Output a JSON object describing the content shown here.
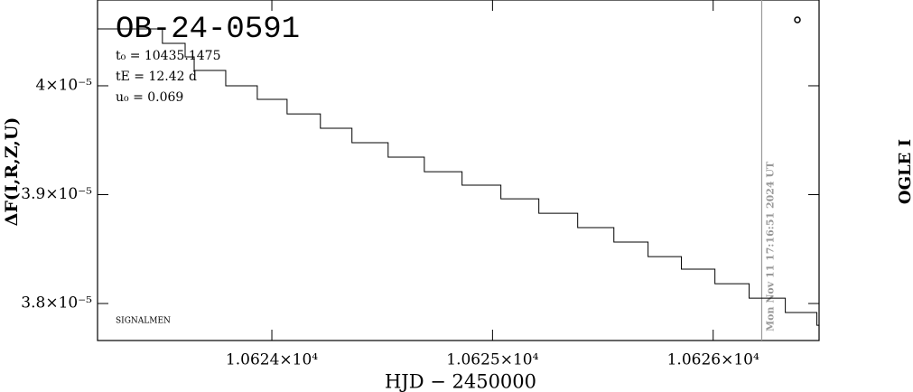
{
  "chart_data": {
    "type": "line",
    "title": "OB-24-0591",
    "parameters": [
      "t₀ = 10435.1475",
      "tE = 12.42 d",
      "u₀ = 0.069"
    ],
    "xlabel": "HJD − 2450000",
    "ylabel": "ΔF(I,R,Z,U)",
    "right_label": "OGLE I",
    "footer": "SIGNALMEN",
    "vline": {
      "x": 10626.22,
      "label": "Mon Nov 11 17:16:51 2024 UT",
      "color": "#999999"
    },
    "xlim": [
      10623.21,
      10626.48
    ],
    "ylim": [
      3.766e-05,
      4.0788e-05
    ],
    "xticks": [
      {
        "value": 10624,
        "label": "1.0624×10⁴"
      },
      {
        "value": 10625,
        "label": "1.0625×10⁴"
      },
      {
        "value": 10626,
        "label": "1.0626×10⁴"
      }
    ],
    "yticks": [
      {
        "value": 3.8e-05,
        "label": "3.8×10⁻⁵"
      },
      {
        "value": 3.9e-05,
        "label": "3.9×10⁻⁵"
      },
      {
        "value": 4e-05,
        "label": "4×10⁻⁵"
      }
    ],
    "grid": false,
    "series": [
      {
        "color": "#000000",
        "x": [
          10623.21,
          10623.504,
          10623.504,
          10623.607,
          10623.607,
          10623.648,
          10623.648,
          10623.791,
          10623.791,
          10623.934,
          10623.934,
          10624.069,
          10624.069,
          10624.22,
          10624.22,
          10624.363,
          10624.363,
          10624.527,
          10624.527,
          10624.691,
          10624.691,
          10624.862,
          10624.862,
          10625.038,
          10625.038,
          10625.21,
          10625.21,
          10625.386,
          10625.386,
          10625.55,
          10625.55,
          10625.705,
          10625.705,
          10625.856,
          10625.856,
          10626.008,
          10626.008,
          10626.163,
          10626.163,
          10626.327,
          10626.327,
          10626.47,
          10626.47,
          10626.478
        ],
        "values": [
          4.0522e-05,
          4.0522e-05,
          4.039e-05,
          4.039e-05,
          4.0265e-05,
          4.0265e-05,
          4.0141e-05,
          4.0141e-05,
          4e-05,
          4e-05,
          3.9875e-05,
          3.9875e-05,
          3.9742e-05,
          3.9742e-05,
          3.961e-05,
          3.961e-05,
          3.9477e-05,
          3.9477e-05,
          3.9344e-05,
          3.9344e-05,
          3.9211e-05,
          3.9211e-05,
          3.9087e-05,
          3.9087e-05,
          3.8962e-05,
          3.8962e-05,
          3.8829e-05,
          3.8829e-05,
          3.8697e-05,
          3.8697e-05,
          3.8564e-05,
          3.8564e-05,
          3.8431e-05,
          3.8431e-05,
          3.8315e-05,
          3.8315e-05,
          3.8182e-05,
          3.8182e-05,
          3.8049e-05,
          3.8049e-05,
          3.7917e-05,
          3.7917e-05,
          3.78e-05,
          3.78e-05
        ]
      }
    ]
  }
}
